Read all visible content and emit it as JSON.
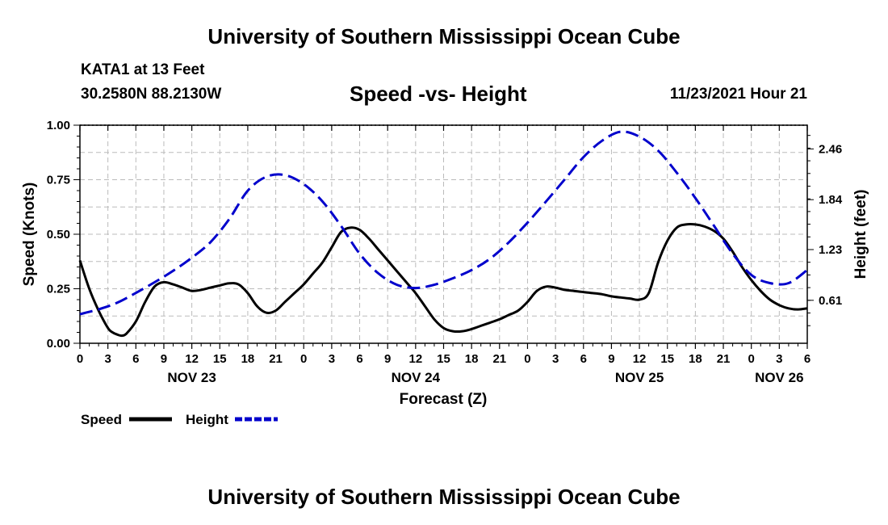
{
  "header": {
    "title_top": "University of Southern Mississippi Ocean Cube",
    "title_bottom": "University of Southern Mississippi Ocean Cube",
    "station_name": "KATA1 at 13 Feet",
    "station_coords": "30.2580N  88.2130W",
    "chart_title": "Speed -vs- Height",
    "chart_date": "11/23/2021 Hour 21"
  },
  "colors": {
    "speed": "#000000",
    "height": "#0000cc",
    "grid": "#bbbbbb"
  },
  "chart_data": {
    "type": "line",
    "title": "Speed -vs- Height",
    "xlabel": "Forecast (Z)",
    "ylabel": "Speed (Knots)",
    "y2label": "Height (feet)",
    "x_range": [
      0,
      78
    ],
    "ylim": [
      0,
      1.0
    ],
    "y2lim": [
      0.085,
      2.75
    ],
    "grid": true,
    "legend_position": "bottom-left",
    "x_tick_labels": [
      "0",
      "3",
      "6",
      "9",
      "12",
      "15",
      "18",
      "21",
      "0",
      "3",
      "6",
      "9",
      "12",
      "15",
      "18",
      "21",
      "0",
      "3",
      "6",
      "9",
      "12",
      "15",
      "18",
      "21",
      "0",
      "3",
      "6"
    ],
    "day_labels": [
      {
        "label": "NOV 23",
        "hour": 12
      },
      {
        "label": "NOV 24",
        "hour": 36
      },
      {
        "label": "NOV 25",
        "hour": 60
      },
      {
        "label": "NOV 26",
        "hour": 75
      }
    ],
    "y_ticks": [
      "0.00",
      "0.25",
      "0.50",
      "0.75",
      "1.00"
    ],
    "y_tick_values": [
      0,
      0.25,
      0.5,
      0.75,
      1.0
    ],
    "y2_ticks": [
      "0.61",
      "1.23",
      "1.84",
      "2.46"
    ],
    "y2_tick_values": [
      0.61,
      1.23,
      1.84,
      2.46
    ],
    "series": [
      {
        "name": "Speed",
        "axis": "left",
        "style": "solid",
        "x": [
          0,
          1,
          2,
          3,
          3.5,
          4,
          4.5,
          5,
          6,
          7,
          8,
          9,
          10,
          11,
          12,
          13,
          14,
          15,
          16,
          17,
          18,
          19,
          20,
          21,
          22,
          23,
          24,
          25,
          26,
          27,
          28,
          29,
          30,
          31,
          32,
          33,
          34,
          35,
          36,
          37,
          38,
          39,
          40,
          41,
          42,
          43,
          44,
          45,
          46,
          47,
          48,
          49,
          50,
          51,
          52,
          53,
          54,
          55,
          56,
          57,
          58,
          59,
          60,
          61,
          62,
          63,
          64,
          65,
          66,
          67,
          68,
          69,
          70,
          71,
          72,
          73,
          74,
          75,
          76,
          77,
          78
        ],
        "values": [
          0.38,
          0.25,
          0.15,
          0.07,
          0.05,
          0.04,
          0.035,
          0.045,
          0.1,
          0.19,
          0.26,
          0.28,
          0.27,
          0.255,
          0.24,
          0.245,
          0.255,
          0.265,
          0.275,
          0.27,
          0.23,
          0.17,
          0.14,
          0.15,
          0.19,
          0.23,
          0.27,
          0.32,
          0.37,
          0.44,
          0.51,
          0.53,
          0.52,
          0.48,
          0.43,
          0.38,
          0.33,
          0.28,
          0.23,
          0.17,
          0.11,
          0.07,
          0.055,
          0.055,
          0.065,
          0.08,
          0.095,
          0.11,
          0.13,
          0.15,
          0.19,
          0.24,
          0.26,
          0.255,
          0.245,
          0.24,
          0.235,
          0.23,
          0.225,
          0.215,
          0.21,
          0.205,
          0.2,
          0.23,
          0.37,
          0.47,
          0.53,
          0.545,
          0.545,
          0.535,
          0.515,
          0.48,
          0.42,
          0.35,
          0.29,
          0.24,
          0.2,
          0.175,
          0.16,
          0.155,
          0.16
        ]
      },
      {
        "name": "Height",
        "axis": "right",
        "style": "dashed",
        "x": [
          0,
          2,
          4,
          6,
          8,
          10,
          12,
          14,
          16,
          18,
          20,
          22,
          24,
          26,
          28,
          30,
          32,
          34,
          36,
          38,
          40,
          42,
          44,
          46,
          48,
          50,
          52,
          54,
          56,
          58,
          60,
          62,
          64,
          66,
          68,
          70,
          72,
          74,
          76,
          78
        ],
        "values": [
          0.44,
          0.5,
          0.58,
          0.7,
          0.83,
          0.97,
          1.13,
          1.32,
          1.6,
          1.95,
          2.12,
          2.14,
          2.03,
          1.82,
          1.52,
          1.18,
          0.94,
          0.8,
          0.76,
          0.8,
          0.88,
          0.98,
          1.12,
          1.32,
          1.56,
          1.82,
          2.09,
          2.36,
          2.56,
          2.67,
          2.61,
          2.44,
          2.17,
          1.86,
          1.52,
          1.18,
          0.92,
          0.82,
          0.82,
          0.98
        ]
      }
    ],
    "legend": [
      {
        "label": "Speed",
        "style": "solid"
      },
      {
        "label": "Height",
        "style": "dashed"
      }
    ]
  }
}
